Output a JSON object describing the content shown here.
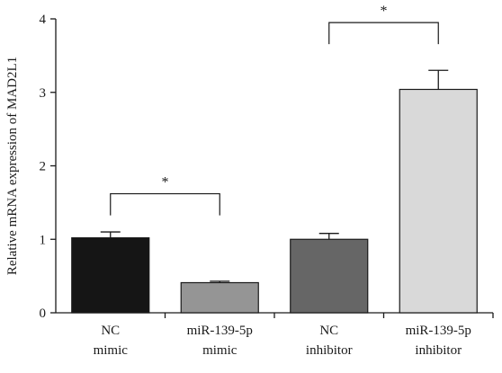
{
  "chart_data": {
    "type": "bar",
    "categories": [
      [
        "NC",
        "mimic"
      ],
      [
        "miR-139-5p",
        "mimic"
      ],
      [
        "NC",
        "inhibitor"
      ],
      [
        "miR-139-5p",
        "inhibitor"
      ]
    ],
    "values": [
      1.02,
      0.41,
      1.0,
      3.04
    ],
    "error": [
      0.08,
      0.02,
      0.08,
      0.26
    ],
    "bar_colors": [
      "#151515",
      "#959595",
      "#666666",
      "#d9d9d9"
    ],
    "title": "",
    "xlabel": "",
    "ylabel": "Relative mRNA expression of MAD2L1",
    "ylim": [
      0,
      4
    ],
    "yticks": [
      "0",
      "1",
      "2",
      "3",
      "4"
    ],
    "grid": false,
    "legend": "none",
    "significance": [
      {
        "from": 0,
        "to": 1,
        "label": "*",
        "y": 1.62
      },
      {
        "from": 2,
        "to": 3,
        "label": "*",
        "y": 3.95
      }
    ]
  }
}
